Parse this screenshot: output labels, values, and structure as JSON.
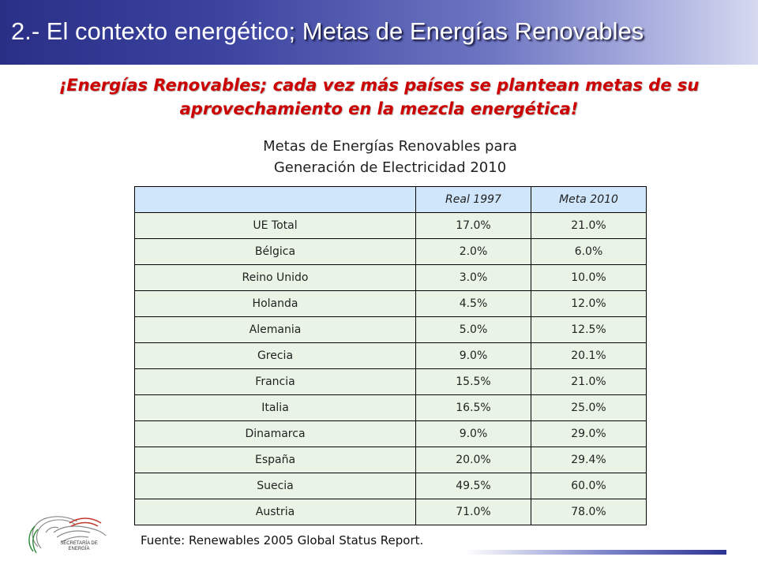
{
  "header": {
    "title_part1": "2.- El contexto energético",
    "title_part2": "; Metas de Energías Renovables",
    "bar_color": "#2a2f86"
  },
  "subtitle": {
    "line1": "¡Energías Renovables; cada vez más países se plantean metas de su",
    "line2": "aprovechamiento en la mezcla energética!",
    "color": "#cc0000"
  },
  "table_caption": {
    "line1": "Metas de Energías Renovables para",
    "line2": "Generación de Electricidad 2010"
  },
  "table": {
    "columns": [
      "",
      "Real 1997",
      "Meta 2010"
    ],
    "rows": [
      {
        "country": "UE Total",
        "real_1997": "17.0%",
        "meta_2010": "21.0%"
      },
      {
        "country": "Bélgica",
        "real_1997": "2.0%",
        "meta_2010": "6.0%"
      },
      {
        "country": "Reino Unido",
        "real_1997": "3.0%",
        "meta_2010": "10.0%"
      },
      {
        "country": "Holanda",
        "real_1997": "4.5%",
        "meta_2010": "12.0%"
      },
      {
        "country": "Alemania",
        "real_1997": "5.0%",
        "meta_2010": "12.5%"
      },
      {
        "country": "Grecia",
        "real_1997": "9.0%",
        "meta_2010": "20.1%"
      },
      {
        "country": "Francia",
        "real_1997": "15.5%",
        "meta_2010": "21.0%"
      },
      {
        "country": "Italia",
        "real_1997": "16.5%",
        "meta_2010": "25.0%"
      },
      {
        "country": "Dinamarca",
        "real_1997": "9.0%",
        "meta_2010": "29.0%"
      },
      {
        "country": "España",
        "real_1997": "20.0%",
        "meta_2010": "29.4%"
      },
      {
        "country": "Suecia",
        "real_1997": "49.5%",
        "meta_2010": "60.0%"
      },
      {
        "country": "Austria",
        "real_1997": "71.0%",
        "meta_2010": "78.0%"
      }
    ],
    "header_color": "#cfe6fb",
    "row_color": "#e9f4e6"
  },
  "source": {
    "text": "Fuente: Renewables 2005 Global Status Report."
  },
  "logo": {
    "icon": "mexican-eagle-emblem",
    "line1": "SECRETARÍA DE",
    "line2": "ENERGÍA"
  }
}
